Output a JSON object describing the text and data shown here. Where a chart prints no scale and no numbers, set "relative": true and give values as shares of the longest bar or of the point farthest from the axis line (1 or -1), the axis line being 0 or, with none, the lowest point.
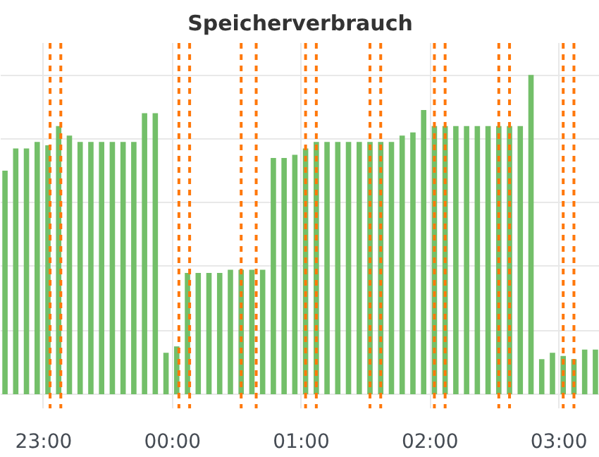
{
  "chart_data": {
    "type": "bar",
    "title": "Speicherverbrauch",
    "relative": true,
    "color": "#73bf69",
    "grid": true,
    "x": [
      "2000-01-01T22:42",
      "2000-01-01T22:47",
      "2000-01-01T22:52",
      "2000-01-01T22:57",
      "2000-01-01T23:02",
      "2000-01-01T23:07",
      "2000-01-01T23:12",
      "2000-01-01T23:17",
      "2000-01-01T23:22",
      "2000-01-01T23:27",
      "2000-01-01T23:32",
      "2000-01-01T23:37",
      "2000-01-01T23:42",
      "2000-01-01T23:47",
      "2000-01-01T23:52",
      "2000-01-01T23:57",
      "2000-01-02T00:02",
      "2000-01-02T00:07",
      "2000-01-02T00:12",
      "2000-01-02T00:17",
      "2000-01-02T00:22",
      "2000-01-02T00:27",
      "2000-01-02T00:32",
      "2000-01-02T00:37",
      "2000-01-02T00:42",
      "2000-01-02T00:47",
      "2000-01-02T00:52",
      "2000-01-02T00:57",
      "2000-01-02T01:02",
      "2000-01-02T01:07",
      "2000-01-02T01:12",
      "2000-01-02T01:17",
      "2000-01-02T01:22",
      "2000-01-02T01:27",
      "2000-01-02T01:32",
      "2000-01-02T01:37",
      "2000-01-02T01:42",
      "2000-01-02T01:47",
      "2000-01-02T01:52",
      "2000-01-02T01:57",
      "2000-01-02T02:02",
      "2000-01-02T02:07",
      "2000-01-02T02:12",
      "2000-01-02T02:17",
      "2000-01-02T02:22",
      "2000-01-02T02:27",
      "2000-01-02T02:32",
      "2000-01-02T02:37",
      "2000-01-02T02:42",
      "2000-01-02T02:47",
      "2000-01-02T02:52",
      "2000-01-02T02:57",
      "2000-01-02T03:02",
      "2000-01-02T03:07",
      "2000-01-02T03:12",
      "2000-01-02T03:17"
    ],
    "values": [
      0.7,
      0.77,
      0.77,
      0.79,
      0.78,
      0.84,
      0.81,
      0.79,
      0.79,
      0.79,
      0.79,
      0.79,
      0.79,
      0.88,
      0.88,
      0.13,
      0.15,
      0.38,
      0.38,
      0.38,
      0.38,
      0.39,
      0.39,
      0.39,
      0.39,
      0.74,
      0.74,
      0.75,
      0.77,
      0.79,
      0.79,
      0.79,
      0.79,
      0.79,
      0.79,
      0.79,
      0.79,
      0.81,
      0.82,
      0.89,
      0.84,
      0.84,
      0.84,
      0.84,
      0.84,
      0.84,
      0.84,
      0.84,
      0.84,
      1.0,
      0.11,
      0.13,
      0.12,
      0.11,
      0.14,
      0.14
    ],
    "xlim": [
      "2000-01-01T22:40",
      "2000-01-02T03:19"
    ],
    "xticks": [
      {
        "value": "2000-01-01T23:00",
        "label": "23:00"
      },
      {
        "value": "2000-01-02T00:00",
        "label": "00:00"
      },
      {
        "value": "2000-01-02T01:00",
        "label": "01:00"
      },
      {
        "value": "2000-01-02T02:00",
        "label": "02:00"
      },
      {
        "value": "2000-01-02T03:00",
        "label": "03:00"
      }
    ],
    "tick_labels": "x",
    "ref_lines": [
      {
        "axis": "x",
        "value": "2000-01-01T23:03",
        "color": "#ff780a",
        "line_style": "dashed"
      },
      {
        "axis": "x",
        "value": "2000-01-01T23:08",
        "color": "#ff780a",
        "line_style": "dashed"
      },
      {
        "axis": "x",
        "value": "2000-01-02T00:03",
        "color": "#ff780a",
        "line_style": "dashed"
      },
      {
        "axis": "x",
        "value": "2000-01-02T00:08",
        "color": "#ff780a",
        "line_style": "dashed"
      },
      {
        "axis": "x",
        "value": "2000-01-02T00:32",
        "color": "#ff780a",
        "line_style": "dashed"
      },
      {
        "axis": "x",
        "value": "2000-01-02T00:39",
        "color": "#ff780a",
        "line_style": "dashed"
      },
      {
        "axis": "x",
        "value": "2000-01-02T01:02",
        "color": "#ff780a",
        "line_style": "dashed"
      },
      {
        "axis": "x",
        "value": "2000-01-02T01:07",
        "color": "#ff780a",
        "line_style": "dashed"
      },
      {
        "axis": "x",
        "value": "2000-01-02T01:32",
        "color": "#ff780a",
        "line_style": "dashed"
      },
      {
        "axis": "x",
        "value": "2000-01-02T01:37",
        "color": "#ff780a",
        "line_style": "dashed"
      },
      {
        "axis": "x",
        "value": "2000-01-02T02:02",
        "color": "#ff780a",
        "line_style": "dashed"
      },
      {
        "axis": "x",
        "value": "2000-01-02T02:07",
        "color": "#ff780a",
        "line_style": "dashed"
      },
      {
        "axis": "x",
        "value": "2000-01-02T02:32",
        "color": "#ff780a",
        "line_style": "dashed"
      },
      {
        "axis": "x",
        "value": "2000-01-02T02:37",
        "color": "#ff780a",
        "line_style": "dashed"
      },
      {
        "axis": "x",
        "value": "2000-01-02T03:02",
        "color": "#ff780a",
        "line_style": "dashed"
      },
      {
        "axis": "x",
        "value": "2000-01-02T03:07",
        "color": "#ff780a",
        "line_style": "dashed"
      }
    ]
  }
}
